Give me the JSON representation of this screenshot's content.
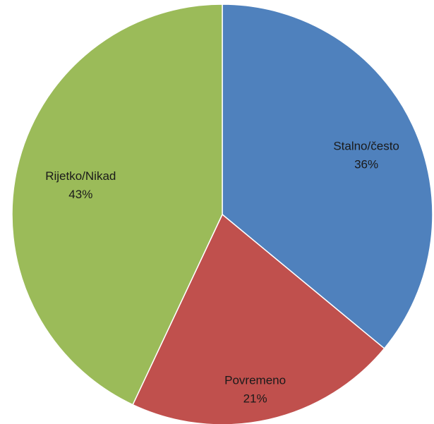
{
  "chart_data": {
    "type": "pie",
    "title": "",
    "slices": [
      {
        "label": "Stalno/često",
        "value": 36,
        "value_label": "36%",
        "color": "#4f81bd"
      },
      {
        "label": "Povremeno",
        "value": 21,
        "value_label": "21%",
        "color": "#c0504d"
      },
      {
        "label": "Rijetko/Nikad",
        "value": 43,
        "value_label": "43%",
        "color": "#9bbb59"
      }
    ],
    "start": "top, clockwise",
    "legend": "none",
    "labels": "inside slices"
  }
}
